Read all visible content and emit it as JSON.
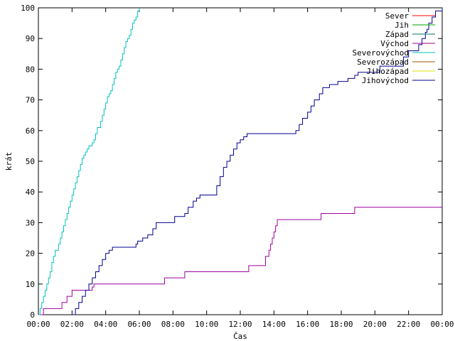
{
  "chart_data": {
    "type": "line",
    "xlabel": "Čas",
    "ylabel": "krát",
    "xlim": [
      0,
      24
    ],
    "ylim": [
      0,
      100
    ],
    "xticks": [
      {
        "value": 0,
        "label": "00:00"
      },
      {
        "value": 2,
        "label": "02:00"
      },
      {
        "value": 4,
        "label": "04:00"
      },
      {
        "value": 6,
        "label": "06:00"
      },
      {
        "value": 8,
        "label": "08:00"
      },
      {
        "value": 10,
        "label": "10:00"
      },
      {
        "value": 12,
        "label": "12:00"
      },
      {
        "value": 14,
        "label": "14:00"
      },
      {
        "value": 16,
        "label": "16:00"
      },
      {
        "value": 18,
        "label": "18:00"
      },
      {
        "value": 20,
        "label": "20:00"
      },
      {
        "value": 22,
        "label": "22:00"
      },
      {
        "value": 24,
        "label": "00:00"
      }
    ],
    "yticks": [
      0,
      10,
      20,
      30,
      40,
      50,
      60,
      70,
      80,
      90,
      100
    ],
    "grid": false,
    "legend_position": "top-right",
    "series": [
      {
        "name": "Sever",
        "color": "#ff0000",
        "step": true,
        "x": [],
        "y": []
      },
      {
        "name": "Jih",
        "color": "#00a000",
        "step": true,
        "x": [],
        "y": []
      },
      {
        "name": "Západ",
        "color": "#007070",
        "step": true,
        "x": [],
        "y": []
      },
      {
        "name": "Východ",
        "color": "#a000a0",
        "step": true,
        "x": [
          0,
          0.3,
          1.0,
          1.4,
          1.7,
          1.8,
          2.0,
          3.2,
          3.3,
          7.5,
          8.7,
          12.5,
          13.5,
          13.7,
          13.8,
          13.9,
          14.0,
          14.1,
          14.2,
          14.3,
          16.8,
          18.8,
          24
        ],
        "y": [
          0,
          2,
          2,
          4,
          6,
          6,
          8,
          9,
          10,
          12,
          14,
          16,
          19,
          21,
          23,
          25,
          27,
          29,
          31,
          31,
          33,
          35,
          35
        ]
      },
      {
        "name": "Severovýchod",
        "color": "#00c0c0",
        "step": true,
        "x": [
          0,
          0.1,
          0.2,
          0.3,
          0.4,
          0.5,
          0.6,
          0.7,
          0.8,
          0.9,
          1.0,
          1.1,
          1.2,
          1.3,
          1.4,
          1.5,
          1.6,
          1.7,
          1.8,
          1.9,
          2.0,
          2.1,
          2.2,
          2.3,
          2.4,
          2.5,
          2.6,
          2.7,
          2.8,
          2.9,
          3.0,
          3.1,
          3.2,
          3.3,
          3.4,
          3.5,
          3.6,
          3.7,
          3.8,
          3.9,
          4.0,
          4.1,
          4.2,
          4.3,
          4.4,
          4.5,
          4.6,
          4.7,
          4.8,
          4.9,
          5.0,
          5.1,
          5.2,
          5.3,
          5.4,
          5.5,
          5.6,
          5.7,
          5.8,
          5.9,
          6.0
        ],
        "y": [
          0,
          2,
          4,
          6,
          8,
          10,
          12,
          14,
          17,
          19,
          21,
          21,
          23,
          25,
          27,
          29,
          31,
          33,
          35,
          37,
          39,
          41,
          43,
          45,
          47,
          49,
          51,
          52,
          53,
          54,
          55,
          55,
          56,
          57,
          59,
          61,
          61,
          63,
          65,
          67,
          69,
          71,
          72,
          73,
          75,
          77,
          79,
          80,
          81,
          83,
          85,
          87,
          89,
          90,
          91,
          93,
          95,
          96,
          97,
          99,
          100
        ]
      },
      {
        "name": "Severozápad",
        "color": "#a05000",
        "step": true,
        "x": [],
        "y": []
      },
      {
        "name": "Jihozápad",
        "color": "#e0e000",
        "step": true,
        "x": [],
        "y": []
      },
      {
        "name": "Jihovýchod",
        "color": "#000090",
        "step": true,
        "x": [
          2.1,
          2.2,
          2.4,
          2.6,
          2.8,
          3.0,
          3.2,
          3.4,
          3.6,
          3.8,
          4.0,
          4.2,
          4.4,
          4.6,
          5.8,
          5.9,
          6.2,
          6.5,
          6.8,
          7.0,
          7.2,
          8.1,
          8.7,
          8.9,
          9.2,
          9.4,
          9.6,
          9.8,
          10.0,
          10.6,
          10.8,
          11.0,
          11.2,
          11.4,
          11.6,
          11.8,
          12.0,
          12.2,
          12.4,
          12.6,
          15.0,
          15.3,
          15.5,
          15.7,
          16.0,
          16.2,
          16.4,
          16.7,
          16.9,
          17.3,
          17.8,
          18.4,
          18.8,
          19.0,
          20.3,
          21.7,
          22.0,
          22.6,
          22.8,
          23.0,
          23.1,
          23.2,
          23.4,
          23.6,
          24.0
        ],
        "y": [
          0,
          2,
          4,
          6,
          8,
          10,
          12,
          14,
          16,
          18,
          20,
          21,
          22,
          22,
          23,
          24,
          25,
          26,
          28,
          30,
          30,
          32,
          33,
          35,
          37,
          38,
          39,
          39,
          39,
          42,
          45,
          48,
          50,
          52,
          54,
          56,
          57,
          58,
          59,
          59,
          59,
          60,
          62,
          64,
          66,
          68,
          70,
          72,
          74,
          75,
          76,
          77,
          78,
          79,
          81,
          84,
          86,
          88,
          90,
          92,
          93,
          95,
          97,
          99,
          100
        ]
      }
    ]
  }
}
